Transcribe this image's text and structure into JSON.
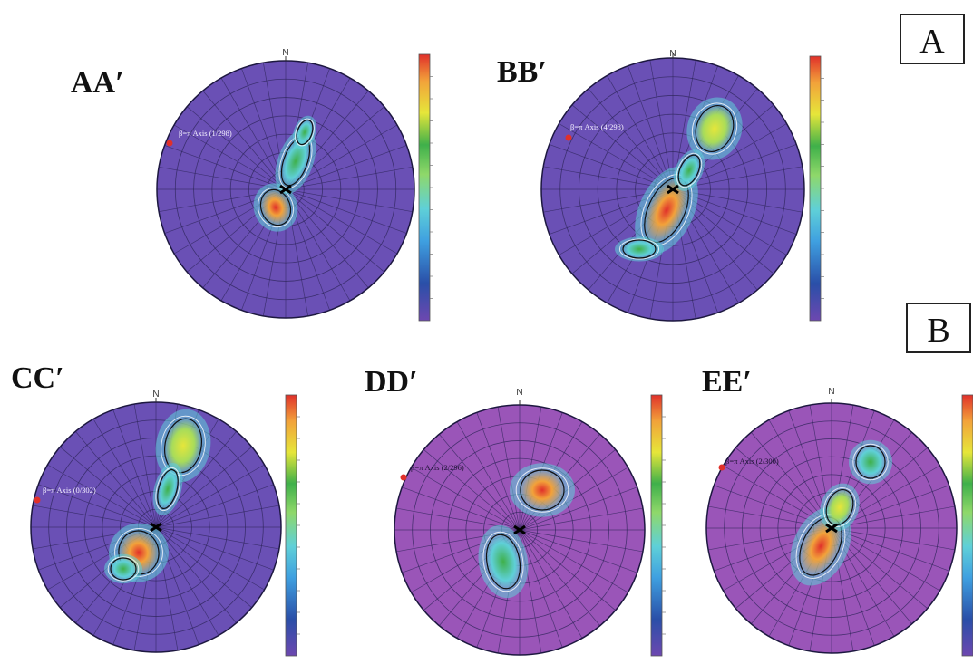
{
  "panel_labels": [
    "A",
    "B"
  ],
  "north_label": "N",
  "colors": {
    "net_blue": "#6a50b5",
    "net_purple": "#9a55b8",
    "grid_line": "#2c2458",
    "colorbar_stops": [
      "#6d48b0",
      "#2a4fa8",
      "#3fa0e0",
      "#5fd0d8",
      "#8fd86a",
      "#3fb04a",
      "#e6e63a",
      "#f2a23a",
      "#e0302a"
    ]
  },
  "plots": [
    {
      "id": "aa",
      "title": "AA′",
      "axis_label": "β=π Axis (1/298)",
      "net_color": "net_blue"
    },
    {
      "id": "bb",
      "title": "BB′",
      "axis_label": "β=π Axis (4/298)",
      "net_color": "net_blue"
    },
    {
      "id": "cc",
      "title": "CC′",
      "axis_label": "β=π Axis (0/302)",
      "net_color": "net_blue"
    },
    {
      "id": "dd",
      "title": "DD′",
      "axis_label": "β=π Axis (2/296)",
      "net_color": "net_purple"
    },
    {
      "id": "ee",
      "title": "EE′",
      "axis_label": "β=π Axis (2/300)",
      "net_color": "net_purple"
    }
  ]
}
